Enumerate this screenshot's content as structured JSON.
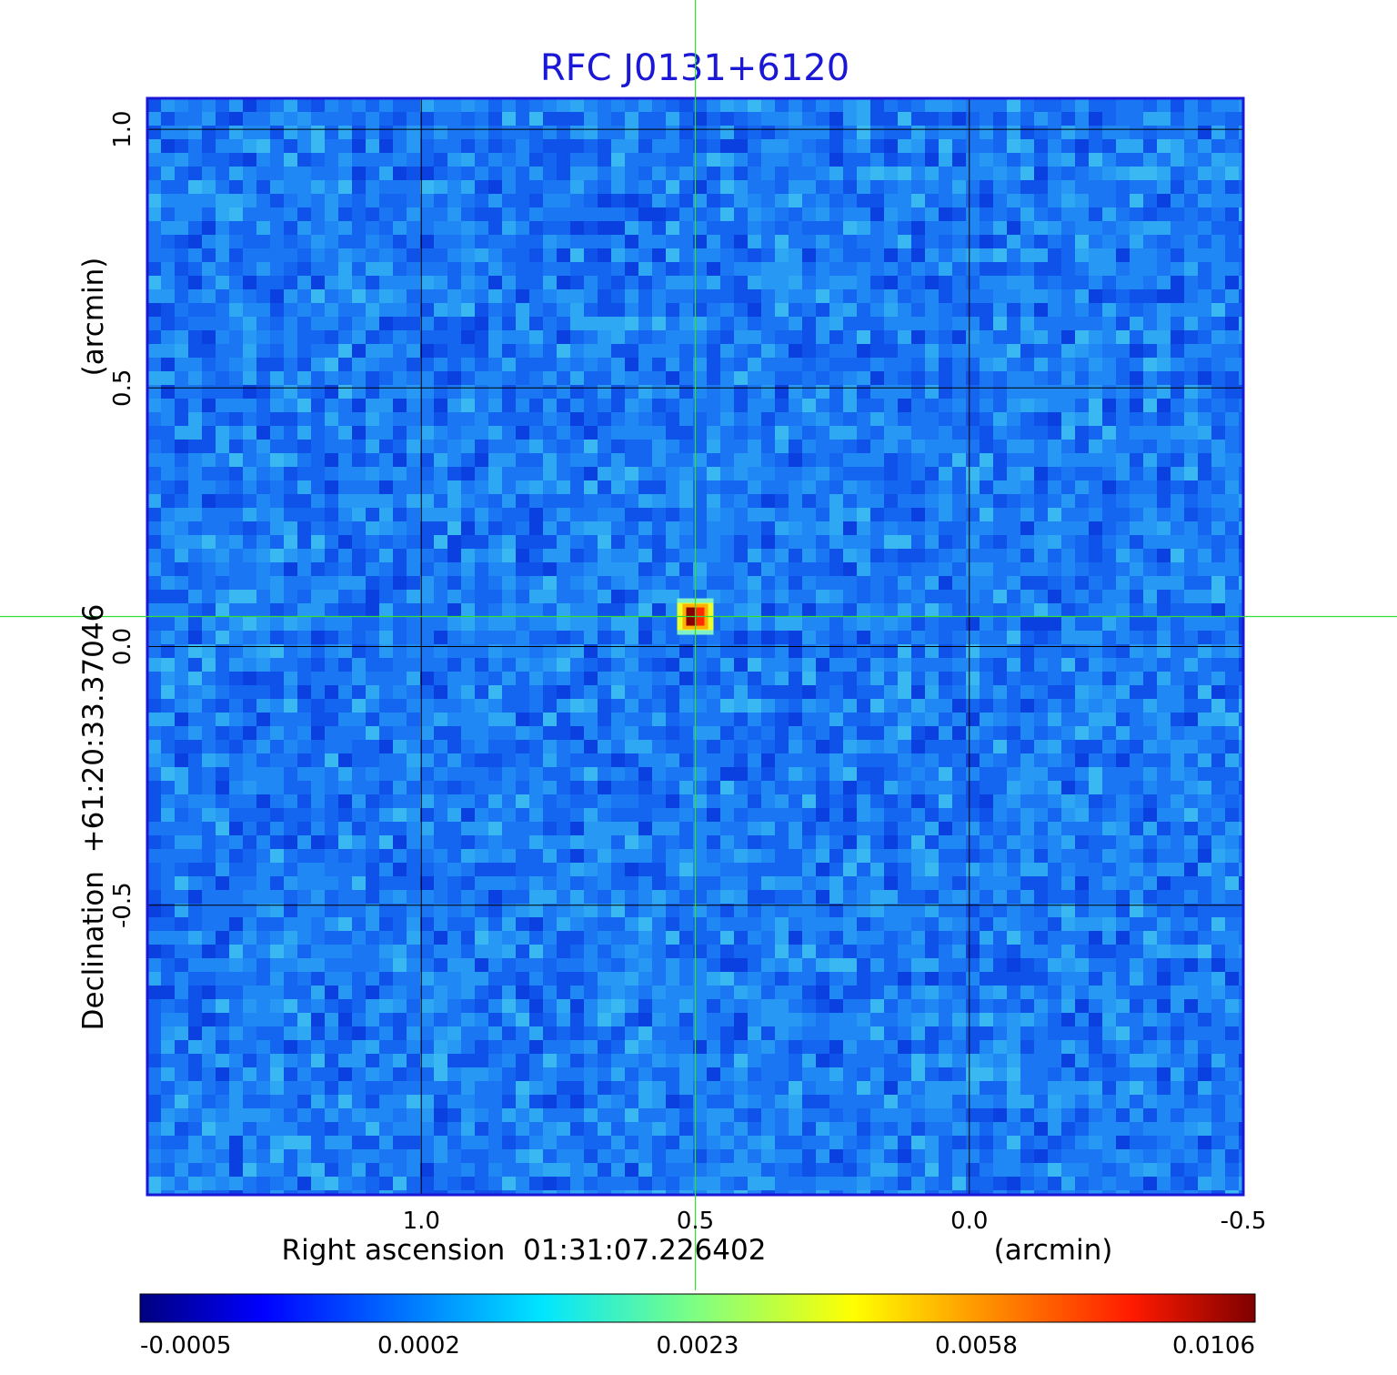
{
  "chart_data": {
    "type": "heatmap",
    "title": "RFC J0131+6120",
    "colormap": "jet",
    "colors": {
      "title": "#1a17d6",
      "frame": "#1a17d6",
      "grid": "#000000",
      "crosshair": "#33dd33",
      "background_field": "#1f7ff0"
    },
    "x_axis": {
      "label": "Right ascension  01:31:07.226402",
      "unit": "(arcmin)",
      "range": [
        1.5,
        -0.5
      ],
      "ticks": [
        {
          "value": 1.0,
          "label": "1.0"
        },
        {
          "value": 0.5,
          "label": "0.5"
        },
        {
          "value": 0.0,
          "label": "0.0"
        },
        {
          "value": -0.5,
          "label": "-0.5"
        }
      ]
    },
    "y_axis": {
      "label": "Declination  +61:20:33.37046",
      "unit": "(arcmin)",
      "range": [
        -1.06,
        1.06
      ],
      "ticks": [
        {
          "value": 1.0,
          "label": "1.0"
        },
        {
          "value": 0.5,
          "label": "0.5"
        },
        {
          "value": 0.0,
          "label": "0.0"
        },
        {
          "value": -0.5,
          "label": "-0.5"
        }
      ]
    },
    "grid": true,
    "source_peak": {
      "ra_offset": 0.5,
      "dec_offset": 0.058,
      "value": 0.0106
    },
    "crosshair": {
      "ra_offset": 0.5,
      "dec_offset": 0.058
    },
    "colorbar": {
      "position": "bottom",
      "range": [
        -0.0005,
        0.0106
      ],
      "ticks": [
        {
          "value": -0.0005,
          "label": "-0.0005"
        },
        {
          "value": 0.0002,
          "label": "0.0002"
        },
        {
          "value": 0.0023,
          "label": "0.0023"
        },
        {
          "value": 0.0058,
          "label": "0.0058"
        },
        {
          "value": 0.0106,
          "label": "0.0106"
        }
      ]
    }
  }
}
